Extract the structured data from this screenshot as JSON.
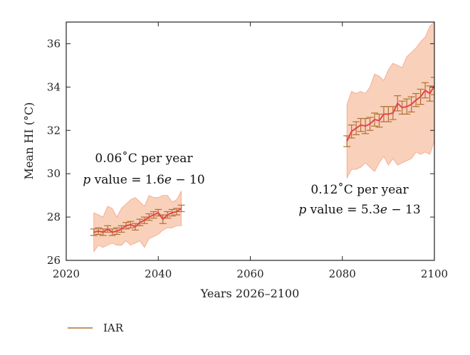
{
  "chart_data": {
    "type": "line",
    "title": "",
    "xlabel": "Years 2026–2100",
    "ylabel": "Mean HI (°C)",
    "xlim": [
      2020,
      2100
    ],
    "ylim": [
      26,
      37
    ],
    "xticks": [
      2020,
      2040,
      2060,
      2080,
      2100
    ],
    "yticks": [
      26,
      28,
      30,
      32,
      34,
      36
    ],
    "grid": false,
    "legend": {
      "placement": "bottom-left",
      "entries": [
        "IAR"
      ]
    },
    "colors": {
      "mean_line": "#e8404f",
      "error_bars": "#b07030",
      "band_fill": "#f8c8ae",
      "band_stroke": "#f3a588",
      "legend_line": "#b07030"
    },
    "annotations": [
      {
        "line1": "0.06˚C per year",
        "line2_italic": "p",
        "line2_rest": " value = 1.6",
        "line2_italic2": "e",
        "line2_end": " − 10"
      },
      {
        "line1": "0.12˚C per year",
        "line2_italic": "p",
        "line2_rest": " value = 5.3",
        "line2_italic2": "e",
        "line2_end": " − 13"
      }
    ],
    "series": [
      {
        "name": "IAR",
        "segment": "2026–2045",
        "x": [
          2026,
          2027,
          2028,
          2029,
          2030,
          2031,
          2032,
          2033,
          2034,
          2035,
          2036,
          2037,
          2038,
          2039,
          2040,
          2041,
          2042,
          2043,
          2044,
          2045
        ],
        "y": [
          27.3,
          27.35,
          27.3,
          27.45,
          27.3,
          27.35,
          27.45,
          27.6,
          27.65,
          27.55,
          27.75,
          27.85,
          28.0,
          28.1,
          28.2,
          27.9,
          28.1,
          28.2,
          28.25,
          28.4
        ],
        "err": [
          0.15,
          0.15,
          0.15,
          0.15,
          0.15,
          0.15,
          0.15,
          0.15,
          0.15,
          0.15,
          0.15,
          0.15,
          0.15,
          0.15,
          0.15,
          0.2,
          0.15,
          0.15,
          0.15,
          0.15
        ],
        "band_low": [
          26.4,
          26.7,
          26.6,
          26.7,
          26.8,
          26.7,
          26.7,
          26.9,
          26.7,
          26.8,
          26.9,
          26.6,
          27.0,
          27.1,
          27.2,
          27.4,
          27.5,
          27.5,
          27.6,
          27.6
        ],
        "band_high": [
          28.2,
          28.1,
          28.0,
          28.5,
          28.4,
          28.0,
          28.4,
          28.6,
          28.8,
          28.9,
          28.7,
          28.5,
          29.0,
          28.9,
          28.9,
          29.0,
          29.0,
          28.7,
          28.8,
          29.2
        ]
      },
      {
        "name": "IAR",
        "segment": "2081–2100",
        "x": [
          2081,
          2082,
          2083,
          2084,
          2085,
          2086,
          2087,
          2088,
          2089,
          2090,
          2091,
          2092,
          2093,
          2094,
          2095,
          2096,
          2097,
          2098,
          2099,
          2100
        ],
        "y": [
          31.5,
          31.95,
          32.1,
          32.25,
          32.2,
          32.3,
          32.5,
          32.45,
          32.75,
          32.75,
          32.8,
          33.25,
          33.05,
          33.1,
          33.2,
          33.4,
          33.55,
          33.85,
          33.7,
          34.05
        ],
        "err": [
          0.25,
          0.3,
          0.3,
          0.3,
          0.35,
          0.3,
          0.3,
          0.3,
          0.35,
          0.35,
          0.3,
          0.35,
          0.3,
          0.35,
          0.35,
          0.3,
          0.35,
          0.35,
          0.35,
          0.4
        ],
        "band_low": [
          29.8,
          30.2,
          30.2,
          30.3,
          30.5,
          30.3,
          30.1,
          30.5,
          30.8,
          30.4,
          30.7,
          30.4,
          30.5,
          30.6,
          30.7,
          31.0,
          30.9,
          31.0,
          30.9,
          31.5
        ],
        "band_high": [
          33.2,
          33.8,
          33.7,
          33.8,
          33.7,
          34.0,
          34.6,
          34.5,
          34.3,
          34.8,
          35.1,
          35.0,
          34.9,
          35.4,
          35.6,
          35.8,
          36.1,
          36.3,
          36.8,
          37.0
        ]
      }
    ]
  }
}
